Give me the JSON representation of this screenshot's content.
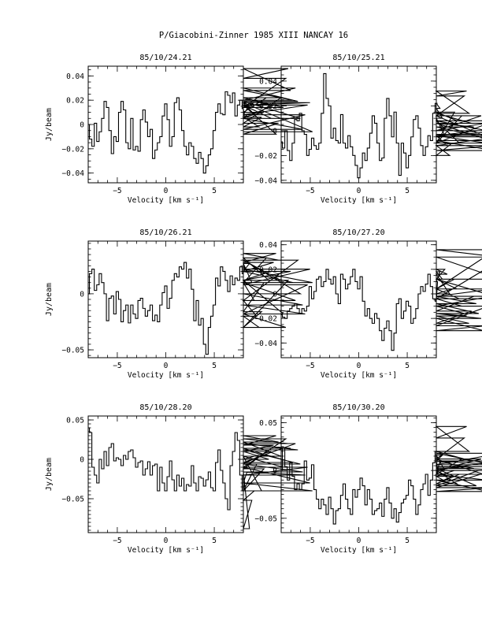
{
  "page_title": "P/Giacobini-Zinner 1985 XIII   NANCAY    16",
  "chart_data": [
    {
      "type": "line",
      "title": "85/10/24.21",
      "xlabel": "Velocity [km s⁻¹]",
      "ylabel": "Jy/beam",
      "xlim": [
        -8,
        8
      ],
      "ylim": [
        -0.048,
        0.048
      ],
      "xticks": [
        -5,
        0,
        5
      ],
      "yticks": [
        -0.04,
        -0.02,
        0,
        0.02,
        0.04
      ],
      "ytick_labels": [
        "−0.04",
        "−0.02",
        "0",
        "0.02",
        "0.04"
      ],
      "step": 0.25,
      "x_start": -8,
      "values": [
        0.0,
        -0.012,
        -0.018,
        0.001,
        -0.014,
        -0.006,
        0.005,
        0.019,
        0.014,
        -0.005,
        -0.024,
        -0.01,
        -0.014,
        0.01,
        0.019,
        0.012,
        -0.015,
        -0.02,
        0.005,
        -0.021,
        -0.018,
        -0.022,
        0.004,
        0.012,
        0.002,
        -0.01,
        -0.004,
        -0.028,
        -0.021,
        -0.015,
        -0.01,
        0.007,
        0.017,
        0.004,
        -0.018,
        -0.01,
        0.018,
        0.022,
        0.012,
        -0.005,
        -0.018,
        -0.025,
        -0.015,
        -0.018,
        -0.028,
        -0.032,
        -0.023,
        -0.028,
        -0.04,
        -0.034,
        -0.025,
        -0.02,
        -0.005,
        0.01,
        0.017,
        0.009,
        0.008,
        0.027,
        0.024,
        0.018,
        0.026,
        0.007,
        0.016,
        0.02,
        0.013,
        0.005,
        0.008,
        0.016,
        0.014,
        0.018,
        0.006,
        -0.002,
        0.006,
        0.01,
        0.022,
        0.016,
        0.005,
        0.016,
        -0.008,
        0.001,
        0.022,
        0.014,
        0.038,
        0.046,
        0.028,
        0.02,
        0.03,
        0.019,
        0.005,
        -0.004,
        0.008,
        0.016,
        0.018,
        -0.006
      ]
    },
    {
      "type": "line",
      "title": "85/10/25.21",
      "xlabel": "Velocity [km s⁻¹]",
      "ylabel": "",
      "xlim": [
        -8,
        8
      ],
      "ylim": [
        -0.042,
        0.052
      ],
      "xticks": [
        -5,
        0,
        5
      ],
      "yticks": [
        -0.04,
        -0.02,
        0,
        0.02,
        0.04
      ],
      "ytick_labels": [
        "−0.04",
        "−0.02",
        "0",
        "0.02",
        "0.04"
      ],
      "step": 0.25,
      "x_start": -8,
      "values": [
        -0.009,
        -0.014,
        0.0,
        -0.016,
        -0.024,
        -0.01,
        0.009,
        0.008,
        0.014,
        0.0,
        -0.003,
        -0.02,
        -0.015,
        -0.006,
        -0.012,
        -0.015,
        -0.01,
        0.014,
        0.046,
        0.026,
        0.02,
        -0.006,
        0.002,
        -0.008,
        -0.01,
        0.013,
        -0.01,
        -0.014,
        -0.004,
        -0.013,
        -0.02,
        -0.028,
        -0.038,
        -0.03,
        -0.018,
        -0.024,
        -0.014,
        -0.002,
        0.012,
        0.006,
        -0.01,
        -0.024,
        -0.022,
        0.01,
        0.026,
        0.012,
        -0.005,
        0.015,
        -0.01,
        -0.036,
        -0.01,
        -0.018,
        -0.03,
        -0.02,
        -0.005,
        0.009,
        0.012,
        0.002,
        -0.012,
        -0.02,
        -0.013,
        -0.004,
        -0.008,
        0.014,
        0.022,
        0.022,
        0.018,
        0.01,
        -0.004,
        -0.012,
        -0.02,
        -0.01,
        0.015,
        0.008,
        -0.01,
        0.012,
        0.028,
        0.032,
        0.014,
        0.006,
        0.003,
        -0.004,
        0.0,
        0.012,
        -0.004,
        -0.01,
        0.006,
        -0.008,
        -0.016,
        -0.012,
        -0.005,
        0.0,
        0.008,
        -0.003
      ]
    },
    {
      "type": "line",
      "title": "85/10/26.21",
      "xlabel": "Velocity [km s⁻¹]",
      "ylabel": "Jy/beam",
      "xlim": [
        -8,
        8
      ],
      "ylim": [
        -0.057,
        0.047
      ],
      "xticks": [
        -5,
        0,
        5
      ],
      "yticks": [
        -0.05,
        0
      ],
      "ytick_labels": [
        "−0.05",
        "0"
      ],
      "step": 0.25,
      "x_start": -8,
      "values": [
        0.0,
        0.018,
        0.022,
        0.003,
        0.008,
        0.018,
        0.01,
        0.0,
        -0.024,
        -0.004,
        -0.002,
        -0.018,
        0.002,
        -0.005,
        -0.025,
        -0.015,
        -0.01,
        -0.026,
        -0.01,
        -0.018,
        -0.022,
        -0.006,
        -0.004,
        -0.013,
        -0.02,
        -0.015,
        -0.01,
        -0.024,
        -0.019,
        -0.025,
        -0.01,
        0.001,
        0.007,
        -0.013,
        -0.004,
        0.012,
        0.018,
        0.015,
        0.024,
        0.022,
        0.028,
        0.014,
        0.022,
        0.004,
        -0.024,
        -0.006,
        -0.028,
        -0.022,
        -0.045,
        -0.054,
        -0.03,
        -0.02,
        -0.01,
        0.014,
        0.007,
        0.024,
        0.02,
        0.012,
        0.002,
        0.016,
        0.008,
        0.014,
        0.012,
        0.024,
        0.018,
        0.024,
        0.02,
        0.027,
        0.01,
        -0.006,
        -0.02,
        -0.03,
        -0.016,
        0.01,
        0.032,
        0.012,
        0.02,
        0.028,
        0.036,
        0.03,
        0.012,
        -0.018,
        -0.03,
        0.012,
        0.02,
        0.01,
        -0.006,
        0.03,
        0.0,
        -0.01,
        -0.018,
        0.008,
        0.022,
        0.01
      ]
    },
    {
      "type": "line",
      "title": "85/10/27.20",
      "xlabel": "Velocity [km s⁻¹]",
      "ylabel": "",
      "xlim": [
        -8,
        8
      ],
      "ylim": [
        -0.052,
        0.043
      ],
      "xticks": [
        -5,
        0,
        5
      ],
      "yticks": [
        -0.04,
        -0.02,
        0,
        0.02,
        0.04
      ],
      "ytick_labels": [
        "−0.04",
        "−0.02",
        "0",
        "0.02",
        "0.04"
      ],
      "step": 0.25,
      "x_start": -8,
      "values": [
        -0.017,
        -0.019,
        -0.02,
        -0.014,
        -0.012,
        -0.01,
        -0.008,
        -0.012,
        -0.016,
        -0.012,
        -0.014,
        -0.01,
        0.006,
        -0.004,
        0.002,
        0.012,
        0.014,
        0.006,
        0.01,
        0.02,
        0.012,
        0.008,
        0.014,
        0.0,
        -0.008,
        0.016,
        0.012,
        0.004,
        0.008,
        0.014,
        0.02,
        0.01,
        0.004,
        0.014,
        -0.006,
        -0.018,
        -0.012,
        -0.02,
        -0.024,
        -0.016,
        -0.02,
        -0.03,
        -0.038,
        -0.028,
        -0.022,
        -0.03,
        -0.046,
        -0.032,
        -0.008,
        -0.004,
        -0.02,
        -0.014,
        -0.006,
        -0.01,
        -0.024,
        -0.02,
        -0.012,
        0.0,
        0.006,
        0.002,
        0.008,
        0.016,
        0.006,
        -0.004,
        -0.006,
        0.01,
        0.018,
        0.012,
        0.02,
        0.016,
        0.0,
        0.004,
        0.012,
        0.004,
        -0.004,
        -0.01,
        -0.016,
        -0.018,
        -0.024,
        -0.014,
        -0.002,
        -0.008,
        -0.016,
        -0.02,
        -0.03,
        -0.026,
        -0.01,
        -0.002,
        0.004,
        0.036,
        0.03,
        0.012,
        -0.004,
        0.03
      ]
    },
    {
      "type": "line",
      "title": "85/10/28.20",
      "xlabel": "Velocity [km s⁻¹]",
      "ylabel": "Jy/beam",
      "xlim": [
        -8,
        8
      ],
      "ylim": [
        -0.093,
        0.055
      ],
      "xticks": [
        -5,
        0,
        5
      ],
      "yticks": [
        -0.05,
        0,
        0.05
      ],
      "ytick_labels": [
        "−0.05",
        "0",
        "0.05"
      ],
      "step": 0.25,
      "x_start": -8,
      "values": [
        0.04,
        0.034,
        -0.01,
        -0.02,
        -0.03,
        0.0,
        -0.012,
        0.01,
        -0.008,
        0.015,
        0.02,
        -0.002,
        0.002,
        0.0,
        -0.008,
        0.005,
        0.0,
        0.01,
        0.012,
        0.002,
        -0.01,
        -0.004,
        -0.002,
        -0.02,
        -0.012,
        -0.003,
        -0.02,
        -0.008,
        -0.006,
        -0.04,
        -0.01,
        -0.03,
        -0.04,
        -0.022,
        -0.002,
        -0.026,
        -0.04,
        -0.02,
        -0.034,
        -0.024,
        -0.04,
        -0.032,
        -0.034,
        -0.008,
        -0.03,
        -0.04,
        -0.022,
        -0.024,
        -0.034,
        -0.026,
        -0.016,
        -0.036,
        -0.04,
        -0.004,
        0.012,
        -0.014,
        -0.03,
        -0.05,
        -0.064,
        -0.008,
        0.01,
        0.034,
        0.024,
        -0.02,
        -0.04,
        -0.03,
        -0.016,
        -0.088,
        -0.052,
        -0.04,
        -0.006,
        0.004,
        -0.04,
        -0.012,
        0.01,
        0.0,
        0.01,
        0.018,
        0.03,
        0.022,
        0.004,
        -0.01,
        0.026,
        0.02,
        0.014,
        -0.004,
        0.02,
        0.012,
        -0.006,
        -0.016,
        -0.02,
        -0.01,
        -0.03,
        -0.04
      ]
    },
    {
      "type": "line",
      "title": "85/10/30.20",
      "xlabel": "Velocity [km s⁻¹]",
      "ylabel": "",
      "xlim": [
        -8,
        8
      ],
      "ylim": [
        -0.065,
        0.057
      ],
      "xticks": [
        -5,
        0,
        5
      ],
      "yticks": [
        -0.05,
        0,
        0.05
      ],
      "ytick_labels": [
        "−0.05",
        "0",
        "0.05"
      ],
      "step": 0.25,
      "x_start": -8,
      "values": [
        0.0,
        0.024,
        0.004,
        -0.01,
        0.008,
        -0.006,
        -0.02,
        -0.014,
        -0.02,
        -0.014,
        0.01,
        -0.01,
        -0.008,
        0.006,
        -0.02,
        -0.03,
        -0.04,
        -0.03,
        -0.036,
        -0.046,
        -0.028,
        -0.04,
        -0.056,
        -0.042,
        -0.04,
        -0.026,
        -0.014,
        -0.03,
        -0.04,
        -0.046,
        -0.02,
        -0.028,
        -0.02,
        -0.008,
        -0.016,
        -0.036,
        -0.02,
        -0.03,
        -0.046,
        -0.042,
        -0.04,
        -0.034,
        -0.048,
        -0.03,
        -0.018,
        -0.034,
        -0.05,
        -0.04,
        -0.054,
        -0.044,
        -0.034,
        -0.03,
        -0.026,
        -0.01,
        -0.016,
        -0.03,
        -0.046,
        -0.036,
        -0.02,
        -0.014,
        -0.004,
        -0.026,
        -0.01,
        0.008,
        0.02,
        -0.004,
        0.01,
        0.016,
        0.0,
        -0.006,
        -0.014,
        -0.006,
        0.0,
        -0.014,
        -0.004,
        0.012,
        0.034,
        0.046,
        0.02,
        0.01,
        0.002,
        -0.016,
        0.0,
        0.012,
        -0.004,
        -0.01,
        -0.022,
        -0.018,
        0.0,
        0.01,
        0.006,
        0.018,
        0.004,
        0.0
      ]
    }
  ]
}
